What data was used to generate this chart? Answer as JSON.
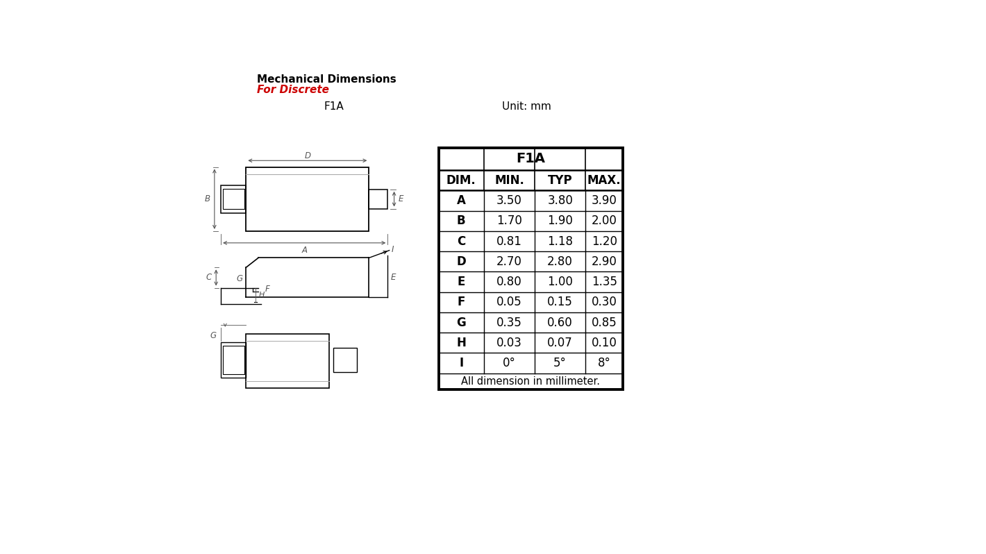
{
  "title_line1": "Mechanical Dimensions",
  "title_line2": "For Discrete",
  "title_color1": "#000000",
  "title_color2": "#cc0000",
  "label_f1a": "F1A",
  "label_unit": "Unit: mm",
  "bg_color": "#ffffff",
  "table_title": "F1A",
  "col_headers": [
    "DIM.",
    "MIN.",
    "TYP",
    "MAX."
  ],
  "table_data": [
    [
      "A",
      "3.50",
      "3.80",
      "3.90"
    ],
    [
      "B",
      "1.70",
      "1.90",
      "2.00"
    ],
    [
      "C",
      "0.81",
      "1.18",
      "1.20"
    ],
    [
      "D",
      "2.70",
      "2.80",
      "2.90"
    ],
    [
      "E",
      "0.80",
      "1.00",
      "1.35"
    ],
    [
      "F",
      "0.05",
      "0.15",
      "0.30"
    ],
    [
      "G",
      "0.35",
      "0.60",
      "0.85"
    ],
    [
      "H",
      "0.03",
      "0.07",
      "0.10"
    ],
    [
      "I",
      "0°",
      "5°",
      "8°"
    ]
  ],
  "table_footer": "All dimension in millimeter.",
  "line_color": "#000000",
  "dim_line_color": "#555555"
}
